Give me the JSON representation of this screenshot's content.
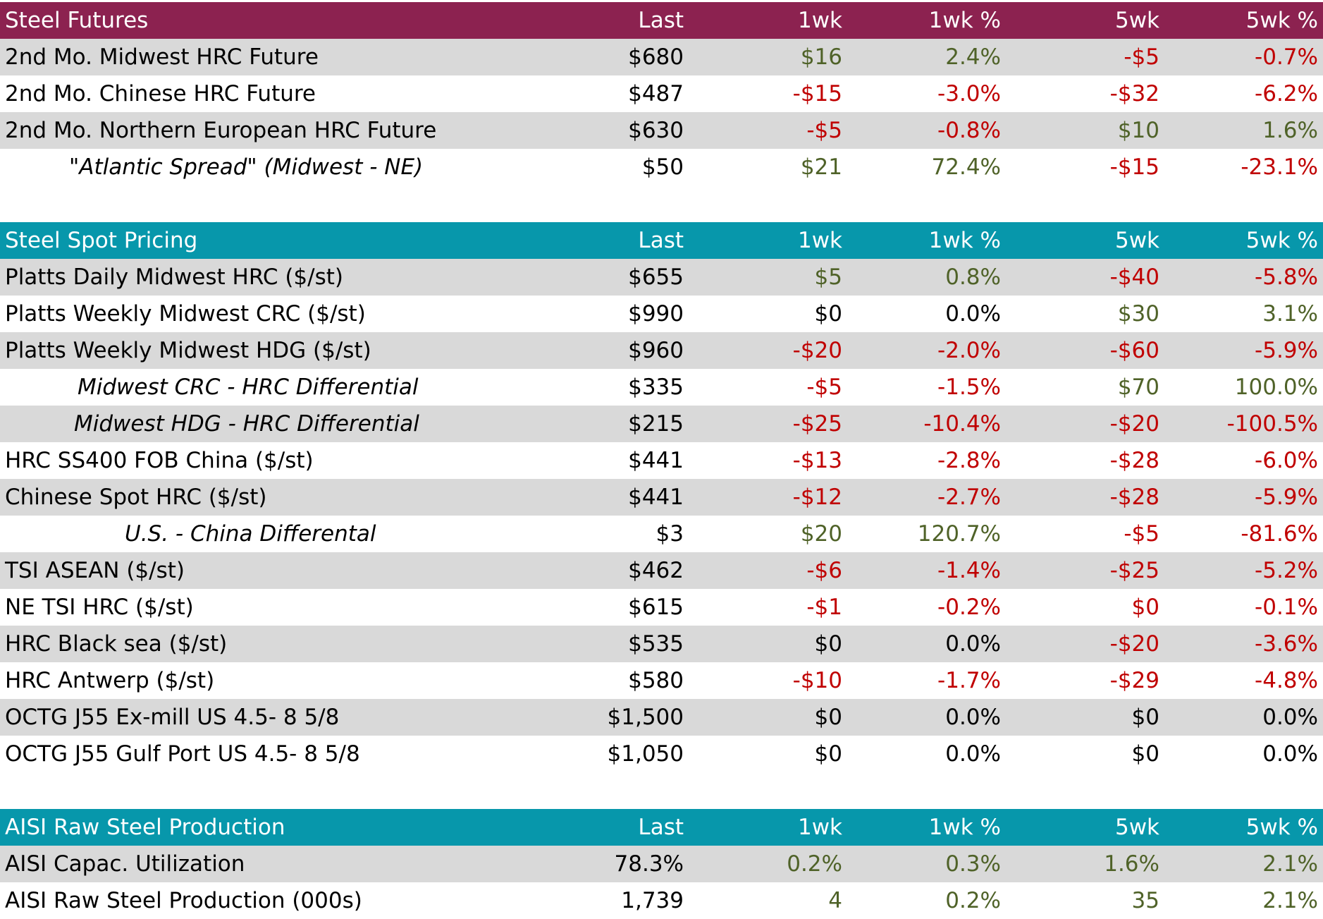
{
  "colors": {
    "futures_header": "#8C2250",
    "spot_header": "#0797AB",
    "stripe": "#D9D9D9",
    "positive": "#4F6228",
    "negative": "#C00000"
  },
  "columns": [
    "Last",
    "1wk",
    "1wk %",
    "5wk",
    "5wk %"
  ],
  "sections": [
    {
      "title": "Steel Futures",
      "header_color": "maroon",
      "rows": [
        {
          "label": "2nd Mo. Midwest HRC Future",
          "values": [
            "$680",
            "$16",
            "2.4%",
            "-$5",
            "-0.7%"
          ],
          "tones": [
            "neu",
            "pos",
            "pos",
            "neg",
            "neg"
          ]
        },
        {
          "label": "2nd Mo. Chinese HRC Future",
          "values": [
            "$487",
            "-$15",
            "-3.0%",
            "-$32",
            "-6.2%"
          ],
          "tones": [
            "neu",
            "neg",
            "neg",
            "neg",
            "neg"
          ]
        },
        {
          "label": "2nd Mo. Northern European HRC Future",
          "values": [
            "$630",
            "-$5",
            "-0.8%",
            "$10",
            "1.6%"
          ],
          "tones": [
            "neu",
            "neg",
            "neg",
            "pos",
            "pos"
          ]
        },
        {
          "label": "\"Atlantic Spread\" (Midwest - NE)",
          "italic": true,
          "indent": 98,
          "values": [
            "$50",
            "$21",
            "72.4%",
            "-$15",
            "-23.1%"
          ],
          "tones": [
            "neu",
            "pos",
            "pos",
            "neg",
            "neg"
          ]
        }
      ]
    },
    {
      "title": "Steel Spot Pricing",
      "header_color": "teal",
      "rows": [
        {
          "label": "Platts Daily Midwest HRC ($/st)",
          "values": [
            "$655",
            "$5",
            "0.8%",
            "-$40",
            "-5.8%"
          ],
          "tones": [
            "neu",
            "pos",
            "pos",
            "neg",
            "neg"
          ]
        },
        {
          "label": "Platts Weekly Midwest CRC ($/st)",
          "values": [
            "$990",
            "$0",
            "0.0%",
            "$30",
            "3.1%"
          ],
          "tones": [
            "neu",
            "neu",
            "neu",
            "pos",
            "pos"
          ]
        },
        {
          "label": "Platts Weekly Midwest HDG ($/st)",
          "values": [
            "$960",
            "-$20",
            "-2.0%",
            "-$60",
            "-5.9%"
          ],
          "tones": [
            "neu",
            "neg",
            "neg",
            "neg",
            "neg"
          ]
        },
        {
          "label": "Midwest CRC - HRC Differential",
          "italic": true,
          "indent": 110,
          "values": [
            "$335",
            "-$5",
            "-1.5%",
            "$70",
            "100.0%"
          ],
          "tones": [
            "neu",
            "neg",
            "neg",
            "pos",
            "pos"
          ]
        },
        {
          "label": "Midwest HDG - HRC Differential",
          "italic": true,
          "indent": 105,
          "values": [
            "$215",
            "-$25",
            "-10.4%",
            "-$20",
            "-100.5%"
          ],
          "tones": [
            "neu",
            "neg",
            "neg",
            "neg",
            "neg"
          ]
        },
        {
          "label": "HRC SS400 FOB China ($/st)",
          "values": [
            "$441",
            "-$13",
            "-2.8%",
            "-$28",
            "-6.0%"
          ],
          "tones": [
            "neu",
            "neg",
            "neg",
            "neg",
            "neg"
          ]
        },
        {
          "label": "Chinese Spot HRC ($/st)",
          "values": [
            "$441",
            "-$12",
            "-2.7%",
            "-$28",
            "-5.9%"
          ],
          "tones": [
            "neu",
            "neg",
            "neg",
            "neg",
            "neg"
          ]
        },
        {
          "label": "U.S. - China Differental",
          "italic": true,
          "indent": 177,
          "values": [
            "$3",
            "$20",
            "120.7%",
            "-$5",
            "-81.6%"
          ],
          "tones": [
            "neu",
            "pos",
            "pos",
            "neg",
            "neg"
          ]
        },
        {
          "label": "TSI ASEAN ($/st)",
          "values": [
            "$462",
            "-$6",
            "-1.4%",
            "-$25",
            "-5.2%"
          ],
          "tones": [
            "neu",
            "neg",
            "neg",
            "neg",
            "neg"
          ]
        },
        {
          "label": "NE TSI HRC ($/st)",
          "values": [
            "$615",
            "-$1",
            "-0.2%",
            "$0",
            "-0.1%"
          ],
          "tones": [
            "neu",
            "neg",
            "neg",
            "neg",
            "neg"
          ]
        },
        {
          "label": "HRC Black sea ($/st)",
          "values": [
            "$535",
            "$0",
            "0.0%",
            "-$20",
            "-3.6%"
          ],
          "tones": [
            "neu",
            "neu",
            "neu",
            "neg",
            "neg"
          ]
        },
        {
          "label": "HRC Antwerp ($/st)",
          "values": [
            "$580",
            "-$10",
            "-1.7%",
            "-$29",
            "-4.8%"
          ],
          "tones": [
            "neu",
            "neg",
            "neg",
            "neg",
            "neg"
          ]
        },
        {
          "label": "OCTG J55 Ex-mill US 4.5- 8 5/8",
          "values": [
            "$1,500",
            "$0",
            "0.0%",
            "$0",
            "0.0%"
          ],
          "tones": [
            "neu",
            "neu",
            "neu",
            "neu",
            "neu"
          ]
        },
        {
          "label": "OCTG J55 Gulf Port US 4.5- 8 5/8",
          "values": [
            "$1,050",
            "$0",
            "0.0%",
            "$0",
            "0.0%"
          ],
          "tones": [
            "neu",
            "neu",
            "neu",
            "neu",
            "neu"
          ]
        }
      ]
    },
    {
      "title": "AISI Raw Steel Production",
      "header_color": "teal",
      "rows": [
        {
          "label": "AISI Capac. Utilization",
          "values": [
            "78.3%",
            "0.2%",
            "0.3%",
            "1.6%",
            "2.1%"
          ],
          "tones": [
            "neu",
            "pos",
            "pos",
            "pos",
            "pos"
          ]
        },
        {
          "label": "AISI Raw Steel Production (000s)",
          "values": [
            "1,739",
            "4",
            "0.2%",
            "35",
            "2.1%"
          ],
          "tones": [
            "neu",
            "pos",
            "pos",
            "pos",
            "pos"
          ]
        }
      ]
    }
  ]
}
